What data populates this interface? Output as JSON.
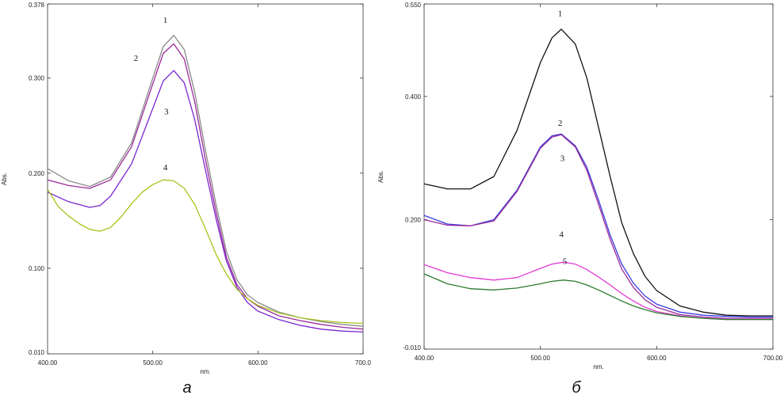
{
  "chart_data": [
    {
      "type": "line",
      "panel_label": "а",
      "xlabel": "nm.",
      "ylabel": "Abs.",
      "xlim": [
        400,
        700
      ],
      "ylim": [
        0.01,
        0.378
      ],
      "x_ticks": [
        "400.00",
        "500.00",
        "600.00",
        "700.0"
      ],
      "y_ticks": [
        {
          "value": 0.378,
          "label": "0.378"
        },
        {
          "value": 0.3,
          "label": "0.300"
        },
        {
          "value": 0.2,
          "label": "0.200"
        },
        {
          "value": 0.1,
          "label": "0.100"
        },
        {
          "value": 0.01,
          "label": "0.010"
        }
      ],
      "series": [
        {
          "name": "1",
          "color": "#8a8a8a",
          "label_at": [
            512,
            0.358
          ],
          "points": [
            [
              400,
              0.205
            ],
            [
              420,
              0.192
            ],
            [
              440,
              0.186
            ],
            [
              460,
              0.196
            ],
            [
              480,
              0.232
            ],
            [
              500,
              0.3
            ],
            [
              510,
              0.333
            ],
            [
              520,
              0.345
            ],
            [
              530,
              0.33
            ],
            [
              540,
              0.285
            ],
            [
              550,
              0.225
            ],
            [
              560,
              0.168
            ],
            [
              570,
              0.118
            ],
            [
              580,
              0.088
            ],
            [
              590,
              0.072
            ],
            [
              600,
              0.064
            ],
            [
              620,
              0.054
            ],
            [
              640,
              0.048
            ],
            [
              660,
              0.044
            ],
            [
              680,
              0.041
            ],
            [
              700,
              0.039
            ]
          ]
        },
        {
          "name": "2",
          "color": "#9b2a9b",
          "label_at": [
            484,
            0.318
          ],
          "points": [
            [
              400,
              0.193
            ],
            [
              420,
              0.187
            ],
            [
              440,
              0.184
            ],
            [
              460,
              0.193
            ],
            [
              480,
              0.228
            ],
            [
              500,
              0.294
            ],
            [
              510,
              0.326
            ],
            [
              520,
              0.336
            ],
            [
              530,
              0.32
            ],
            [
              540,
              0.275
            ],
            [
              550,
              0.215
            ],
            [
              560,
              0.16
            ],
            [
              570,
              0.112
            ],
            [
              580,
              0.083
            ],
            [
              590,
              0.068
            ],
            [
              600,
              0.06
            ],
            [
              620,
              0.05
            ],
            [
              640,
              0.045
            ],
            [
              660,
              0.041
            ],
            [
              680,
              0.038
            ],
            [
              700,
              0.036
            ]
          ]
        },
        {
          "name": "3",
          "color": "#7a25d0",
          "label_at": [
            513,
            0.262
          ],
          "points": [
            [
              400,
              0.18
            ],
            [
              420,
              0.17
            ],
            [
              440,
              0.164
            ],
            [
              450,
              0.166
            ],
            [
              460,
              0.176
            ],
            [
              480,
              0.21
            ],
            [
              500,
              0.268
            ],
            [
              510,
              0.297
            ],
            [
              520,
              0.308
            ],
            [
              530,
              0.295
            ],
            [
              540,
              0.256
            ],
            [
              550,
              0.204
            ],
            [
              560,
              0.153
            ],
            [
              570,
              0.108
            ],
            [
              580,
              0.08
            ],
            [
              590,
              0.064
            ],
            [
              600,
              0.055
            ],
            [
              620,
              0.046
            ],
            [
              640,
              0.04
            ],
            [
              660,
              0.036
            ],
            [
              680,
              0.034
            ],
            [
              700,
              0.033
            ]
          ]
        },
        {
          "name": "4",
          "color": "#a8c21a",
          "label_at": [
            512,
            0.203
          ],
          "points": [
            [
              400,
              0.183
            ],
            [
              410,
              0.165
            ],
            [
              420,
              0.155
            ],
            [
              430,
              0.147
            ],
            [
              440,
              0.141
            ],
            [
              450,
              0.139
            ],
            [
              460,
              0.143
            ],
            [
              470,
              0.154
            ],
            [
              480,
              0.168
            ],
            [
              490,
              0.18
            ],
            [
              500,
              0.188
            ],
            [
              510,
              0.193
            ],
            [
              520,
              0.192
            ],
            [
              530,
              0.184
            ],
            [
              540,
              0.167
            ],
            [
              550,
              0.142
            ],
            [
              560,
              0.115
            ],
            [
              570,
              0.094
            ],
            [
              580,
              0.078
            ],
            [
              590,
              0.068
            ],
            [
              600,
              0.061
            ],
            [
              620,
              0.053
            ],
            [
              640,
              0.048
            ],
            [
              660,
              0.045
            ],
            [
              680,
              0.043
            ],
            [
              700,
              0.042
            ]
          ]
        }
      ]
    },
    {
      "type": "line",
      "panel_label": "б",
      "xlabel": "nm.",
      "ylabel": "Abs.",
      "xlim": [
        400,
        700
      ],
      "ylim": [
        -0.01,
        0.55
      ],
      "x_ticks": [
        "400.00",
        "500.00",
        "600.00",
        "700.00"
      ],
      "y_ticks": [
        {
          "value": 0.55,
          "label": "0.550"
        },
        {
          "value": 0.4,
          "label": "0.400"
        },
        {
          "value": 0.2,
          "label": "0.200"
        },
        {
          "value": -0.01,
          "label": "-0.010"
        }
      ],
      "series": [
        {
          "name": "1",
          "color": "#111111",
          "label_at": [
            517,
            0.53
          ],
          "points": [
            [
              400,
              0.258
            ],
            [
              420,
              0.25
            ],
            [
              440,
              0.25
            ],
            [
              460,
              0.27
            ],
            [
              480,
              0.345
            ],
            [
              500,
              0.455
            ],
            [
              510,
              0.495
            ],
            [
              518,
              0.509
            ],
            [
              530,
              0.485
            ],
            [
              540,
              0.43
            ],
            [
              550,
              0.35
            ],
            [
              560,
              0.27
            ],
            [
              570,
              0.195
            ],
            [
              580,
              0.145
            ],
            [
              590,
              0.108
            ],
            [
              600,
              0.085
            ],
            [
              620,
              0.06
            ],
            [
              640,
              0.05
            ],
            [
              660,
              0.045
            ],
            [
              680,
              0.044
            ],
            [
              700,
              0.044
            ]
          ]
        },
        {
          "name": "2",
          "color": "#3a3ae0",
          "label_at": [
            517,
            0.352
          ],
          "points": [
            [
              400,
              0.207
            ],
            [
              420,
              0.193
            ],
            [
              440,
              0.19
            ],
            [
              460,
              0.2
            ],
            [
              480,
              0.248
            ],
            [
              500,
              0.318
            ],
            [
              510,
              0.336
            ],
            [
              518,
              0.339
            ],
            [
              530,
              0.32
            ],
            [
              540,
              0.285
            ],
            [
              550,
              0.232
            ],
            [
              560,
              0.175
            ],
            [
              570,
              0.128
            ],
            [
              580,
              0.097
            ],
            [
              590,
              0.076
            ],
            [
              600,
              0.063
            ],
            [
              620,
              0.05
            ],
            [
              640,
              0.045
            ],
            [
              660,
              0.043
            ],
            [
              680,
              0.042
            ],
            [
              700,
              0.042
            ]
          ]
        },
        {
          "name": "3",
          "color": "#9b2a9b",
          "label_at": [
            519,
            0.295
          ],
          "points": [
            [
              400,
              0.2
            ],
            [
              420,
              0.191
            ],
            [
              440,
              0.19
            ],
            [
              460,
              0.198
            ],
            [
              480,
              0.246
            ],
            [
              500,
              0.316
            ],
            [
              510,
              0.334
            ],
            [
              518,
              0.338
            ],
            [
              530,
              0.318
            ],
            [
              540,
              0.28
            ],
            [
              550,
              0.225
            ],
            [
              560,
              0.168
            ],
            [
              570,
              0.12
            ],
            [
              580,
              0.09
            ],
            [
              590,
              0.07
            ],
            [
              600,
              0.058
            ],
            [
              620,
              0.046
            ],
            [
              640,
              0.042
            ],
            [
              660,
              0.04
            ],
            [
              680,
              0.04
            ],
            [
              700,
              0.04
            ]
          ]
        },
        {
          "name": "4",
          "color": "#e23ad4",
          "label_at": [
            518,
            0.172
          ],
          "points": [
            [
              400,
              0.127
            ],
            [
              420,
              0.114
            ],
            [
              440,
              0.106
            ],
            [
              460,
              0.102
            ],
            [
              480,
              0.106
            ],
            [
              500,
              0.121
            ],
            [
              510,
              0.128
            ],
            [
              520,
              0.131
            ],
            [
              530,
              0.128
            ],
            [
              540,
              0.119
            ],
            [
              550,
              0.107
            ],
            [
              560,
              0.094
            ],
            [
              570,
              0.08
            ],
            [
              580,
              0.068
            ],
            [
              590,
              0.058
            ],
            [
              600,
              0.051
            ],
            [
              620,
              0.044
            ],
            [
              640,
              0.04
            ],
            [
              660,
              0.038
            ],
            [
              680,
              0.038
            ],
            [
              700,
              0.038
            ]
          ]
        },
        {
          "name": "5",
          "color": "#2e7a2e",
          "label_at": [
            521,
            0.128
          ],
          "points": [
            [
              400,
              0.112
            ],
            [
              420,
              0.096
            ],
            [
              440,
              0.088
            ],
            [
              460,
              0.086
            ],
            [
              480,
              0.089
            ],
            [
              500,
              0.096
            ],
            [
              510,
              0.1
            ],
            [
              520,
              0.102
            ],
            [
              530,
              0.1
            ],
            [
              540,
              0.094
            ],
            [
              550,
              0.086
            ],
            [
              560,
              0.077
            ],
            [
              570,
              0.068
            ],
            [
              580,
              0.06
            ],
            [
              590,
              0.054
            ],
            [
              600,
              0.049
            ],
            [
              620,
              0.043
            ],
            [
              640,
              0.04
            ],
            [
              660,
              0.038
            ],
            [
              680,
              0.038
            ],
            [
              700,
              0.038
            ]
          ]
        }
      ]
    }
  ]
}
